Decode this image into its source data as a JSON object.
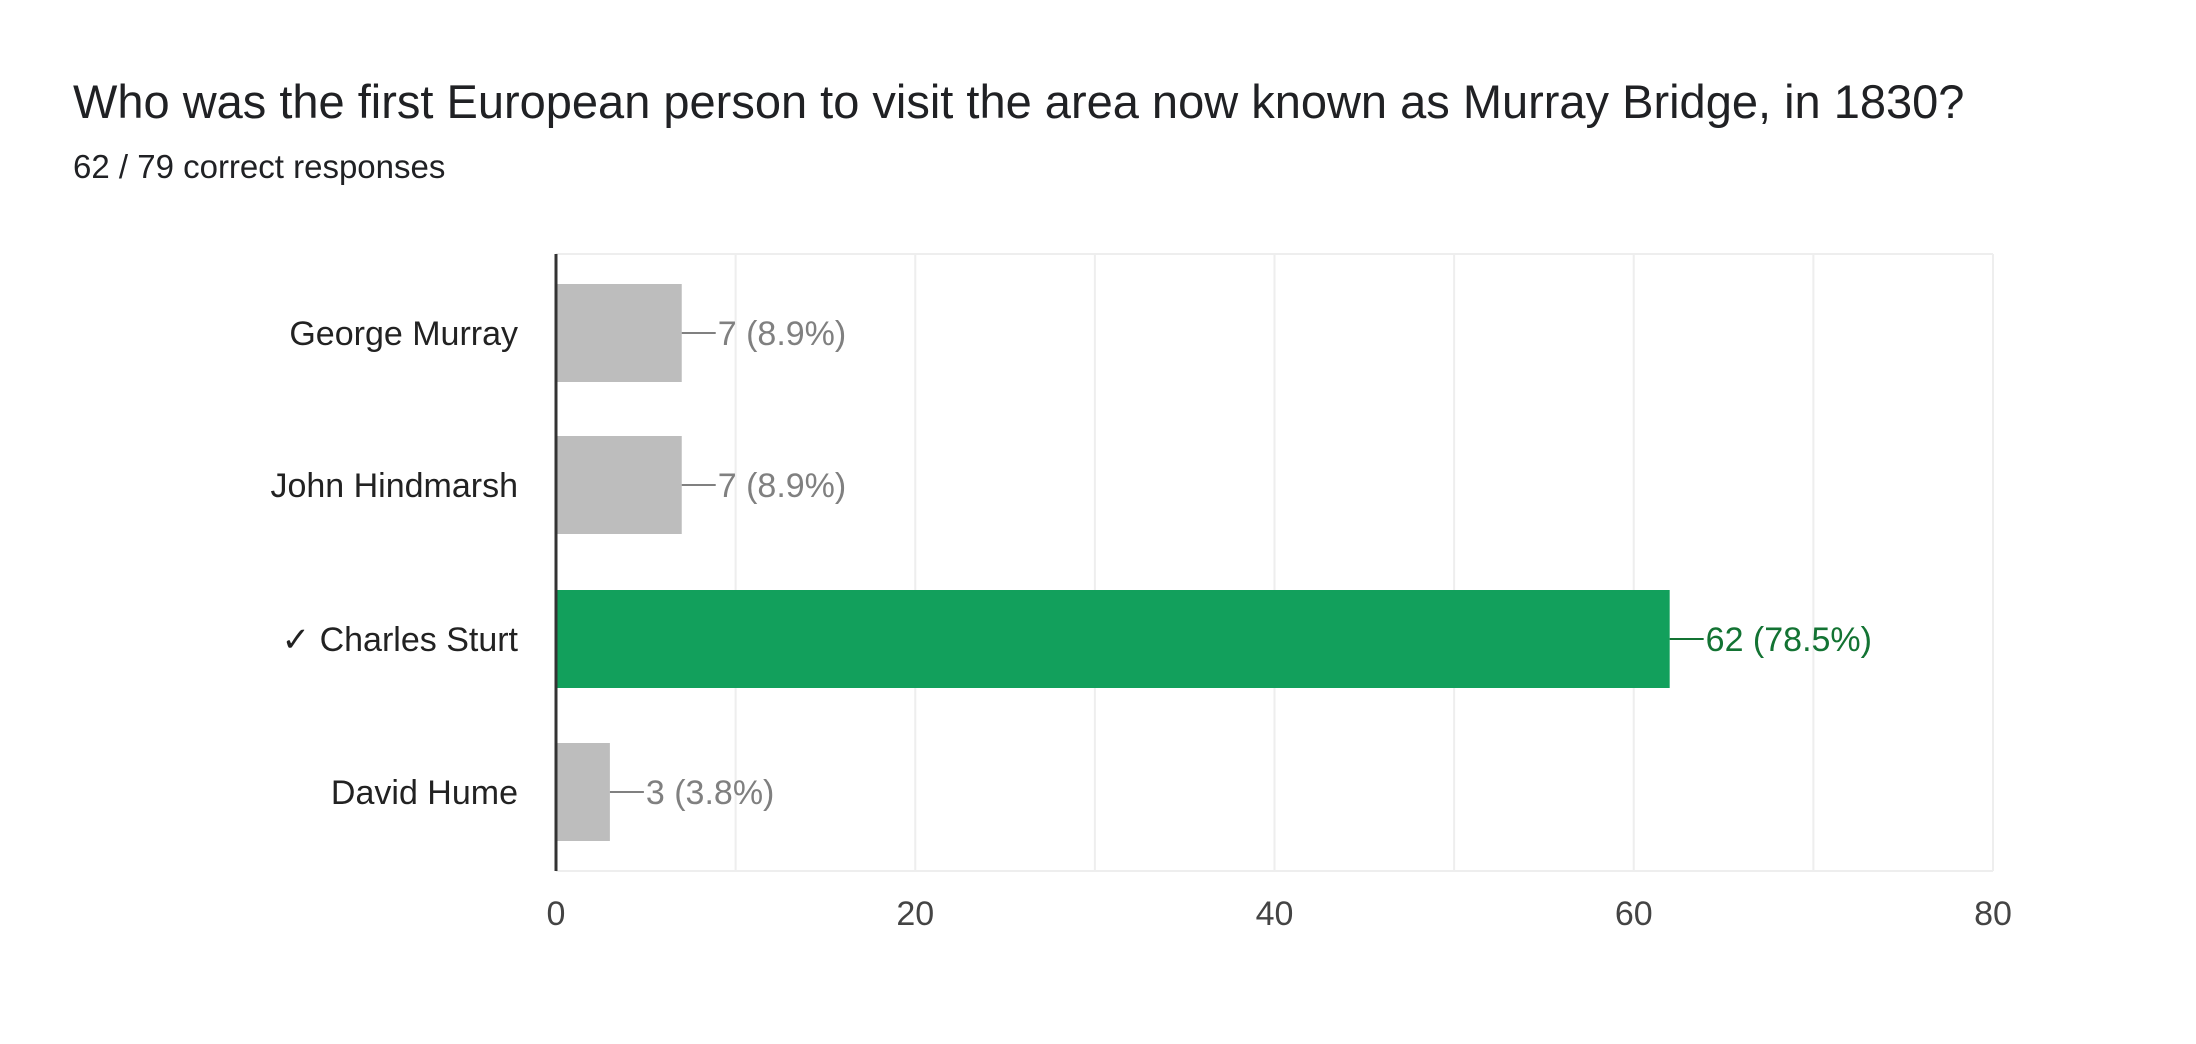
{
  "question": {
    "title": "Who was the first European person to visit the area now known as Murray Bridge, in 1830?",
    "summary": "62 / 79 correct responses"
  },
  "colors": {
    "correct_bar": "#12a05c",
    "correct_label": "#137333",
    "incorrect_bar": "#bdbdbd",
    "incorrect_label": "#808080",
    "grid": "#eeeeee",
    "axis": "#333333",
    "tick_text": "#444444",
    "category_text": "#222222"
  },
  "chart_data": {
    "type": "bar",
    "orientation": "horizontal",
    "categories": [
      "George Murray",
      "John Hindmarsh",
      "✓ Charles Sturt",
      "David Hume"
    ],
    "values": [
      7,
      7,
      62,
      3
    ],
    "value_labels": [
      "7 (8.9%)",
      "7 (8.9%)",
      "62 (78.5%)",
      "3 (3.8%)"
    ],
    "correct": [
      false,
      false,
      true,
      false
    ],
    "xlim": [
      0,
      80
    ],
    "xticks": [
      0,
      20,
      40,
      60,
      80
    ],
    "grid": true,
    "xlabel": "",
    "ylabel": ""
  }
}
